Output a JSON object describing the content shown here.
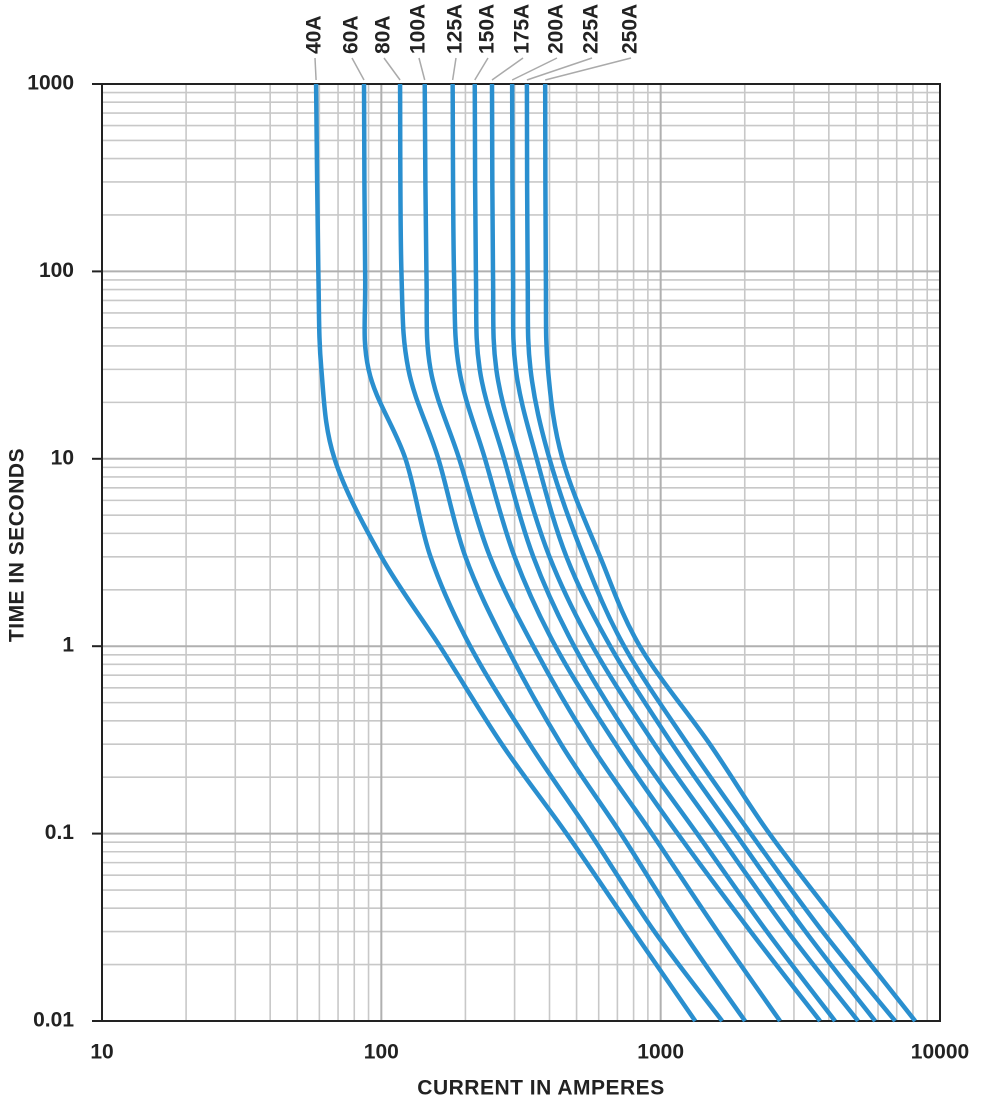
{
  "chart_data": {
    "type": "line",
    "xlabel": "CURRENT IN AMPERES",
    "ylabel": "TIME IN SECONDS",
    "log_x": true,
    "log_y": true,
    "grid": true,
    "minor_grid": true,
    "xlim": [
      10,
      10000
    ],
    "xticks": [
      10,
      100,
      1000,
      10000
    ],
    "ylim": [
      0.01,
      1000
    ],
    "yticks": [
      0.01,
      0.1,
      1,
      10,
      100,
      1000
    ],
    "series": [
      {
        "name": "40A",
        "color": "#2a8fcf",
        "x": [
          58.4,
          59.5,
          61,
          68,
          100,
          162,
          270,
          460,
          800,
          1330
        ],
        "y": [
          1000,
          100,
          30,
          10,
          3,
          1,
          0.3,
          0.1,
          0.03,
          0.01
        ]
      },
      {
        "name": "60A",
        "color": "#2a8fcf",
        "x": [
          86.7,
          87.5,
          90,
          122,
          150,
          208,
          340,
          560,
          950,
          1660
        ],
        "y": [
          1000,
          100,
          30,
          10,
          3,
          1,
          0.3,
          0.1,
          0.03,
          0.01
        ]
      },
      {
        "name": "80A",
        "color": "#2a8fcf",
        "x": [
          116.7,
          118,
          125,
          160,
          200,
          280,
          440,
          720,
          1200,
          2005
        ],
        "y": [
          1000,
          100,
          30,
          10,
          3,
          1,
          0.3,
          0.1,
          0.03,
          0.01
        ]
      },
      {
        "name": "100A",
        "color": "#2a8fcf",
        "x": [
          143,
          145,
          150,
          190,
          245,
          350,
          560,
          930,
          1600,
          2675
        ],
        "y": [
          1000,
          100,
          30,
          10,
          3,
          1,
          0.3,
          0.1,
          0.03,
          0.01
        ]
      },
      {
        "name": "125A",
        "color": "#2a8fcf",
        "x": [
          180,
          182,
          190,
          235,
          300,
          420,
          690,
          1150,
          2100,
          3720
        ],
        "y": [
          1000,
          100,
          30,
          10,
          3,
          1,
          0.3,
          0.1,
          0.03,
          0.01
        ]
      },
      {
        "name": "150A",
        "color": "#2a8fcf",
        "x": [
          216,
          218,
          225,
          275,
          350,
          490,
          800,
          1350,
          2400,
          4210
        ],
        "y": [
          1000,
          100,
          30,
          10,
          3,
          1,
          0.3,
          0.1,
          0.03,
          0.01
        ]
      },
      {
        "name": "175A",
        "color": "#2a8fcf",
        "x": [
          249,
          251,
          258,
          310,
          400,
          570,
          950,
          1600,
          2850,
          5090
        ],
        "y": [
          1000,
          100,
          30,
          10,
          3,
          1,
          0.3,
          0.1,
          0.03,
          0.01
        ]
      },
      {
        "name": "200A",
        "color": "#2a8fcf",
        "x": [
          294,
          296,
          303,
          360,
          460,
          660,
          1100,
          1850,
          3300,
          5860
        ],
        "y": [
          1000,
          100,
          30,
          10,
          3,
          1,
          0.3,
          0.1,
          0.03,
          0.01
        ]
      },
      {
        "name": "225A",
        "color": "#2a8fcf",
        "x": [
          332,
          334,
          342,
          400,
          530,
          740,
          1250,
          2100,
          3800,
          6910
        ],
        "y": [
          1000,
          100,
          30,
          10,
          3,
          1,
          0.3,
          0.1,
          0.03,
          0.01
        ]
      },
      {
        "name": "250A",
        "color": "#2a8fcf",
        "x": [
          386,
          388,
          395,
          445,
          607,
          842,
          1500,
          2450,
          4560,
          8150
        ],
        "y": [
          1000,
          100,
          30,
          10,
          3,
          1,
          0.3,
          0.1,
          0.03,
          0.01
        ]
      }
    ]
  }
}
